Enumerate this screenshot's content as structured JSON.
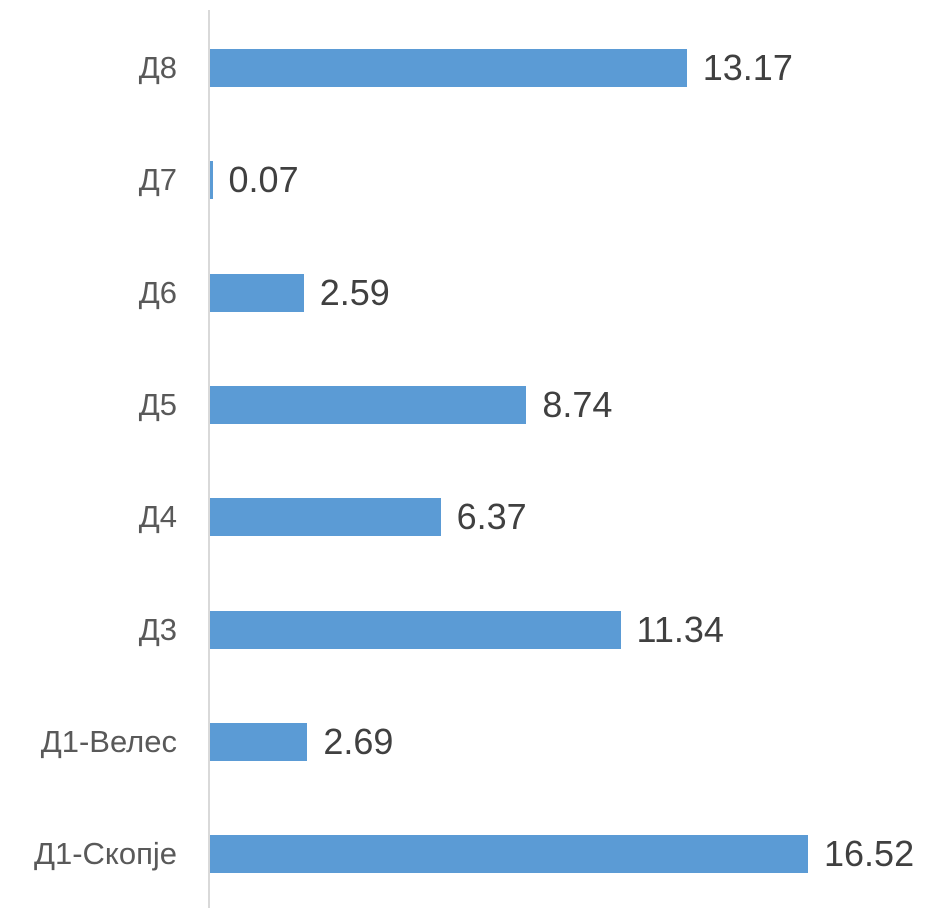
{
  "chart_data": {
    "type": "bar",
    "orientation": "horizontal",
    "categories": [
      "Д8",
      "Д7",
      "Д6",
      "Д5",
      "Д4",
      "Д3",
      "Д1-Велес",
      "Д1-Скопје"
    ],
    "values": [
      13.17,
      0.07,
      2.59,
      8.74,
      6.37,
      11.34,
      2.69,
      16.52
    ],
    "data_labels": [
      "13.17",
      "0.07",
      "2.59",
      "8.74",
      "6.37",
      "11.34",
      "2.69",
      "16.52"
    ],
    "title": "",
    "xlabel": "",
    "ylabel": "",
    "xlim": [
      0,
      20
    ],
    "grid": false,
    "legend": "none",
    "bar_color": "#5b9bd5"
  }
}
